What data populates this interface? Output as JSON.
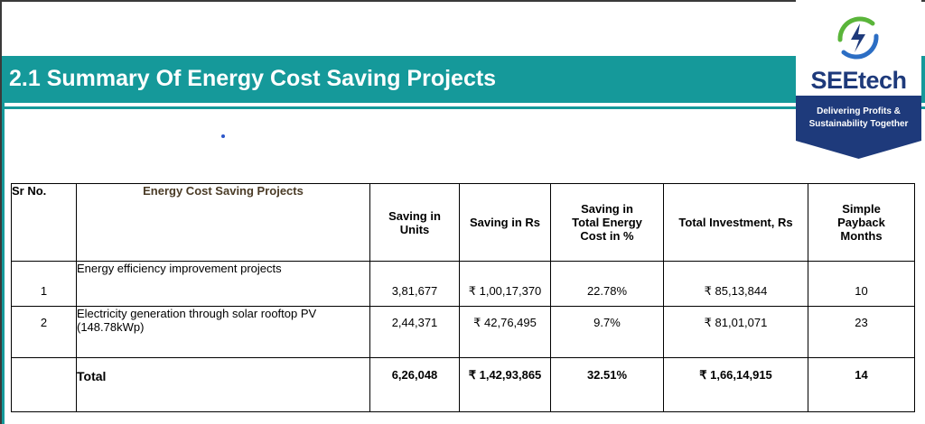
{
  "header": {
    "title": "2.1 Summary Of Energy Cost Saving Projects"
  },
  "logo": {
    "brand": "SEEtech",
    "tagline_line1": "Delivering Profits &",
    "tagline_line2": "Sustainability Together",
    "colors": {
      "navy": "#1e3a7b",
      "green": "#5ab53a",
      "blue": "#2c6ec4"
    }
  },
  "colors": {
    "banner": "#15999a"
  },
  "table": {
    "headers": {
      "sr": "Sr No.",
      "project": "Energy Cost Saving Projects",
      "units_1": "Saving in",
      "units_2": "Units",
      "rs": "Saving in Rs",
      "pct_1": "Saving in",
      "pct_2": "Total Energy",
      "pct_3": "Cost in %",
      "inv": "Total Investment, Rs",
      "pay_1": "Simple",
      "pay_2": "Payback",
      "pay_3": "Months"
    },
    "rows": [
      {
        "sr": "1",
        "project": "Energy efficiency improvement projects",
        "units": "3,81,677",
        "rs": "₹ 1,00,17,370",
        "pct": "22.78%",
        "inv": "₹ 85,13,844",
        "payback": "10"
      },
      {
        "sr": "2",
        "project": "Electricity generation through solar rooftop PV (148.78kWp)",
        "units": "2,44,371",
        "rs": "₹ 42,76,495",
        "pct": "9.7%",
        "inv": "₹ 81,01,071",
        "payback": "23"
      }
    ],
    "total": {
      "label": "Total",
      "units": "6,26,048",
      "rs": "₹ 1,42,93,865",
      "pct": "32.51%",
      "inv": "₹ 1,66,14,915",
      "payback": "14"
    }
  }
}
